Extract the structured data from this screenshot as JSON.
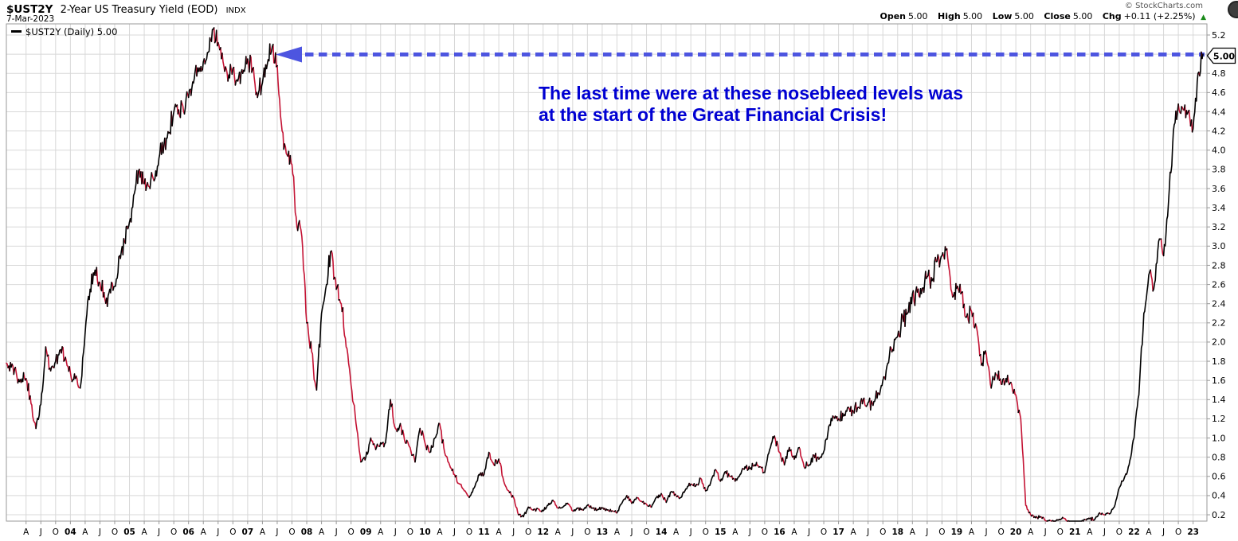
{
  "header": {
    "symbol": "$UST2Y",
    "title": "2-Year US Treasury Yield (EOD)",
    "exchange": "INDX",
    "date": "7-Mar-2023",
    "copyright": "© StockCharts.com",
    "ohlc": {
      "open_label": "Open",
      "open": "5.00",
      "high_label": "High",
      "high": "5.00",
      "low_label": "Low",
      "low": "5.00",
      "close_label": "Close",
      "close": "5.00",
      "chg_label": "Chg",
      "chg": "+0.11 (+2.25%)",
      "direction_icon": "▲"
    }
  },
  "legend": {
    "text": "$UST2Y (Daily) 5.00"
  },
  "annotation": {
    "line1": "The last time were at these nosebleed levels was",
    "line2": "at the start of the Great Financial Crisis!",
    "color": "#0000d2",
    "arrow_color": "#4d55e0",
    "arrow_level": 5.0
  },
  "price_label": "5.00",
  "chart_data": {
    "type": "line",
    "title": "$UST2Y 2-Year US Treasury Yield (EOD) INDX",
    "xlabel": "",
    "ylabel": "",
    "x_start": "2002-12",
    "x_end": "2023-03",
    "frequency": "monthly",
    "ylim": [
      0.13,
      5.32
    ],
    "grid": true,
    "last_price": 5.0,
    "colors": {
      "up": "#000000",
      "down": "#c41334"
    },
    "y_ticks": [
      "5.2",
      "5.0",
      "4.8",
      "4.6",
      "4.4",
      "4.2",
      "4.0",
      "3.8",
      "3.6",
      "3.4",
      "3.2",
      "3.0",
      "2.8",
      "2.6",
      "2.4",
      "2.2",
      "2.0",
      "1.8",
      "1.6",
      "1.4",
      "1.2",
      "1.0",
      "0.8",
      "0.6",
      "0.4",
      "0.2"
    ],
    "x_ticks": [
      "A",
      "J",
      "O",
      "04",
      "A",
      "J",
      "O",
      "05",
      "A",
      "J",
      "O",
      "06",
      "A",
      "J",
      "O",
      "07",
      "A",
      "J",
      "O",
      "08",
      "A",
      "J",
      "O",
      "09",
      "A",
      "J",
      "O",
      "10",
      "A",
      "J",
      "O",
      "11",
      "A",
      "J",
      "O",
      "12",
      "A",
      "J",
      "O",
      "13",
      "A",
      "J",
      "O",
      "14",
      "A",
      "J",
      "O",
      "15",
      "A",
      "J",
      "O",
      "16",
      "A",
      "J",
      "O",
      "17",
      "A",
      "J",
      "O",
      "18",
      "A",
      "J",
      "O",
      "19",
      "A",
      "J",
      "O",
      "20",
      "A",
      "J",
      "O",
      "21",
      "A",
      "J",
      "O",
      "22",
      "A",
      "J",
      "O",
      "23"
    ],
    "series": [
      {
        "name": "$UST2Y",
        "values": [
          1.78,
          1.74,
          1.68,
          1.58,
          1.62,
          1.36,
          1.1,
          1.35,
          1.95,
          1.7,
          1.8,
          1.92,
          1.84,
          1.68,
          1.62,
          1.52,
          2.1,
          2.55,
          2.75,
          2.62,
          2.45,
          2.55,
          2.58,
          2.9,
          3.05,
          3.25,
          3.55,
          3.8,
          3.65,
          3.62,
          3.68,
          3.92,
          4.05,
          4.18,
          4.4,
          4.42,
          4.4,
          4.55,
          4.7,
          4.82,
          4.92,
          5.02,
          5.26,
          5.12,
          4.92,
          4.72,
          4.85,
          4.72,
          4.8,
          4.95,
          4.85,
          4.55,
          4.7,
          4.9,
          5.08,
          4.88,
          4.2,
          3.95,
          3.85,
          3.2,
          3.1,
          2.2,
          1.9,
          1.5,
          2.3,
          2.6,
          2.95,
          2.55,
          2.4,
          1.95,
          1.55,
          1.15,
          0.75,
          0.8,
          1.0,
          0.88,
          0.95,
          0.95,
          1.4,
          1.1,
          1.15,
          0.95,
          0.9,
          0.75,
          1.1,
          0.95,
          0.85,
          1.0,
          1.15,
          0.85,
          0.72,
          0.62,
          0.52,
          0.45,
          0.38,
          0.48,
          0.62,
          0.62,
          0.85,
          0.72,
          0.78,
          0.55,
          0.45,
          0.38,
          0.2,
          0.18,
          0.28,
          0.25,
          0.26,
          0.24,
          0.3,
          0.35,
          0.27,
          0.28,
          0.32,
          0.24,
          0.27,
          0.25,
          0.3,
          0.27,
          0.25,
          0.27,
          0.25,
          0.24,
          0.22,
          0.32,
          0.4,
          0.32,
          0.38,
          0.34,
          0.31,
          0.28,
          0.38,
          0.42,
          0.33,
          0.44,
          0.4,
          0.38,
          0.47,
          0.52,
          0.5,
          0.58,
          0.45,
          0.53,
          0.67,
          0.55,
          0.65,
          0.6,
          0.55,
          0.62,
          0.7,
          0.68,
          0.72,
          0.7,
          0.64,
          0.88,
          1.02,
          0.85,
          0.72,
          0.9,
          0.78,
          0.9,
          0.7,
          0.72,
          0.82,
          0.78,
          0.86,
          1.12,
          1.22,
          1.2,
          1.23,
          1.32,
          1.28,
          1.32,
          1.4,
          1.37,
          1.34,
          1.47,
          1.6,
          1.78,
          1.92,
          2.06,
          2.27,
          2.3,
          2.5,
          2.52,
          2.56,
          2.68,
          2.64,
          2.84,
          2.9,
          2.97,
          2.52,
          2.56,
          2.52,
          2.26,
          2.32,
          2.16,
          1.76,
          1.88,
          1.52,
          1.66,
          1.56,
          1.62,
          1.58,
          1.45,
          1.2,
          0.3,
          0.2,
          0.17,
          0.18,
          0.14,
          0.14,
          0.13,
          0.15,
          0.16,
          0.12,
          0.11,
          0.12,
          0.15,
          0.16,
          0.15,
          0.22,
          0.2,
          0.21,
          0.28,
          0.48,
          0.58,
          0.72,
          1.0,
          1.45,
          2.3,
          2.7,
          2.55,
          3.05,
          2.9,
          3.45,
          4.2,
          4.48,
          4.42,
          4.4,
          4.22,
          4.8,
          5.0
        ]
      }
    ]
  }
}
